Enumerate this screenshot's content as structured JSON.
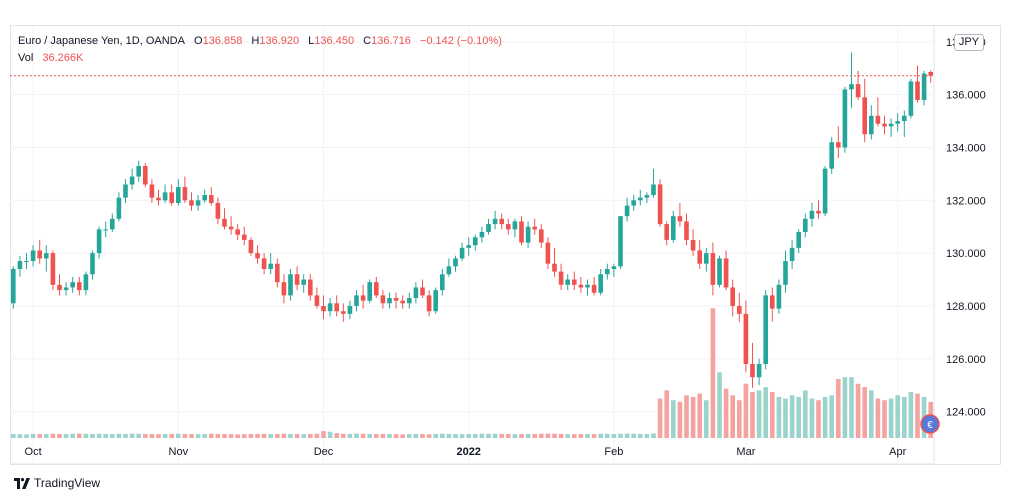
{
  "legend": {
    "symbol": "Euro / Japanese Yen, 1D, OANDA",
    "o_label": "O",
    "o_value": "136.858",
    "h_label": "H",
    "h_value": "136.920",
    "l_label": "L",
    "l_value": "136.450",
    "c_label": "C",
    "c_value": "136.716",
    "change": "−0.142 (−0.10%)",
    "vol_label": "Vol",
    "vol_value": "36.266K"
  },
  "currency_badge": "JPY",
  "footer": {
    "brand": "TradingView"
  },
  "colors": {
    "up": "#26a69a",
    "down": "#ef5350",
    "vol_up": "#9bd3cd",
    "vol_down": "#f4a3a1",
    "grid": "#f0f3fa",
    "axis_text": "#131722"
  },
  "chart_data": {
    "type": "candlestick",
    "ylim": [
      123.0,
      138.6
    ],
    "y_ticks": [
      "124.000",
      "126.000",
      "128.000",
      "130.000",
      "132.000",
      "134.000",
      "136.000",
      "138.000"
    ],
    "x_ticks": [
      {
        "label": "Oct",
        "index": 3,
        "bold": false
      },
      {
        "label": "Nov",
        "index": 25,
        "bold": false
      },
      {
        "label": "Dec",
        "index": 47,
        "bold": false
      },
      {
        "label": "2022",
        "index": 69,
        "bold": true
      },
      {
        "label": "Feb",
        "index": 91,
        "bold": false
      },
      {
        "label": "Mar",
        "index": 111,
        "bold": false
      },
      {
        "label": "Apr",
        "index": 134,
        "bold": false
      }
    ],
    "last_close": 136.716,
    "volume_scale_max": 8400,
    "ohlcv": [
      [
        128.1,
        129.5,
        127.9,
        129.4,
        240
      ],
      [
        129.4,
        129.9,
        129.1,
        129.7,
        230
      ],
      [
        129.7,
        130.0,
        129.4,
        129.7,
        220
      ],
      [
        129.7,
        130.3,
        129.5,
        130.1,
        240
      ],
      [
        130.1,
        130.5,
        129.6,
        129.8,
        250
      ],
      [
        129.8,
        130.3,
        129.3,
        130.0,
        240
      ],
      [
        130.0,
        130.1,
        128.6,
        128.8,
        260
      ],
      [
        128.8,
        129.2,
        128.4,
        128.6,
        250
      ],
      [
        128.6,
        128.9,
        128.4,
        128.7,
        240
      ],
      [
        128.7,
        129.1,
        128.5,
        128.9,
        260
      ],
      [
        128.9,
        129.1,
        128.4,
        128.6,
        270
      ],
      [
        128.6,
        129.3,
        128.4,
        129.2,
        250
      ],
      [
        129.2,
        130.1,
        129.0,
        130.0,
        240
      ],
      [
        130.0,
        131.0,
        129.8,
        130.9,
        260
      ],
      [
        130.9,
        131.2,
        130.6,
        130.9,
        250
      ],
      [
        130.9,
        131.5,
        130.8,
        131.3,
        240
      ],
      [
        131.3,
        132.3,
        131.2,
        132.1,
        260
      ],
      [
        132.1,
        132.8,
        131.9,
        132.6,
        250
      ],
      [
        132.6,
        133.2,
        132.4,
        132.9,
        270
      ],
      [
        132.9,
        133.5,
        132.7,
        133.3,
        260
      ],
      [
        133.3,
        133.4,
        132.5,
        132.6,
        250
      ],
      [
        132.6,
        132.8,
        131.9,
        132.1,
        240
      ],
      [
        132.1,
        132.4,
        131.8,
        132.0,
        230
      ],
      [
        132.0,
        132.6,
        131.9,
        132.3,
        240
      ],
      [
        132.3,
        132.6,
        131.8,
        131.9,
        250
      ],
      [
        131.9,
        132.8,
        131.8,
        132.5,
        260
      ],
      [
        132.5,
        132.9,
        131.9,
        132.0,
        250
      ],
      [
        132.0,
        132.3,
        131.6,
        131.8,
        240
      ],
      [
        131.8,
        132.2,
        131.6,
        132.0,
        230
      ],
      [
        132.0,
        132.4,
        131.9,
        132.2,
        240
      ],
      [
        132.2,
        132.5,
        131.8,
        131.9,
        260
      ],
      [
        131.9,
        132.1,
        131.1,
        131.3,
        250
      ],
      [
        131.3,
        131.7,
        130.9,
        131.0,
        240
      ],
      [
        131.0,
        131.4,
        130.7,
        130.9,
        230
      ],
      [
        130.9,
        131.1,
        130.5,
        130.7,
        220
      ],
      [
        130.7,
        131.0,
        130.3,
        130.5,
        230
      ],
      [
        130.5,
        130.6,
        129.9,
        130.0,
        240
      ],
      [
        130.0,
        130.3,
        129.6,
        129.8,
        250
      ],
      [
        129.8,
        130.0,
        129.2,
        129.4,
        260
      ],
      [
        129.4,
        130.0,
        129.2,
        129.6,
        240
      ],
      [
        129.6,
        129.8,
        128.7,
        128.9,
        250
      ],
      [
        128.9,
        129.2,
        128.1,
        128.4,
        260
      ],
      [
        128.4,
        129.4,
        128.2,
        129.2,
        250
      ],
      [
        129.2,
        129.5,
        128.6,
        128.8,
        240
      ],
      [
        128.8,
        129.2,
        128.5,
        129.0,
        230
      ],
      [
        129.0,
        129.2,
        128.2,
        128.4,
        240
      ],
      [
        128.4,
        128.7,
        127.9,
        128.0,
        260
      ],
      [
        128.0,
        128.4,
        127.5,
        127.8,
        420
      ],
      [
        127.8,
        128.3,
        127.6,
        128.1,
        380
      ],
      [
        128.1,
        128.4,
        127.6,
        127.8,
        300
      ],
      [
        127.8,
        128.1,
        127.4,
        127.7,
        260
      ],
      [
        127.7,
        128.2,
        127.5,
        128.0,
        250
      ],
      [
        128.0,
        128.6,
        127.8,
        128.4,
        270
      ],
      [
        128.4,
        128.8,
        127.9,
        128.2,
        260
      ],
      [
        128.2,
        129.0,
        128.1,
        128.9,
        250
      ],
      [
        128.9,
        129.1,
        128.3,
        128.4,
        240
      ],
      [
        128.4,
        128.6,
        127.9,
        128.1,
        250
      ],
      [
        128.1,
        128.5,
        127.9,
        128.3,
        240
      ],
      [
        128.3,
        128.5,
        127.9,
        128.2,
        230
      ],
      [
        128.2,
        128.4,
        127.9,
        128.1,
        220
      ],
      [
        128.1,
        128.5,
        127.9,
        128.3,
        240
      ],
      [
        128.3,
        128.9,
        128.1,
        128.7,
        250
      ],
      [
        128.7,
        129.0,
        128.3,
        128.4,
        240
      ],
      [
        128.4,
        128.6,
        127.6,
        127.8,
        230
      ],
      [
        127.8,
        128.7,
        127.7,
        128.6,
        250
      ],
      [
        128.6,
        129.4,
        128.4,
        129.2,
        260
      ],
      [
        129.2,
        129.8,
        129.1,
        129.5,
        250
      ],
      [
        129.5,
        129.9,
        129.3,
        129.8,
        240
      ],
      [
        129.8,
        130.4,
        129.7,
        130.2,
        230
      ],
      [
        130.2,
        130.6,
        129.9,
        130.3,
        240
      ],
      [
        130.3,
        130.7,
        130.1,
        130.6,
        250
      ],
      [
        130.6,
        131.0,
        130.4,
        130.8,
        260
      ],
      [
        130.8,
        131.3,
        130.7,
        131.1,
        250
      ],
      [
        131.1,
        131.6,
        130.9,
        131.3,
        260
      ],
      [
        131.3,
        131.5,
        130.9,
        131.1,
        250
      ],
      [
        131.1,
        131.3,
        130.7,
        130.9,
        240
      ],
      [
        130.9,
        131.3,
        130.6,
        131.2,
        230
      ],
      [
        131.2,
        131.4,
        130.3,
        130.4,
        240
      ],
      [
        130.4,
        131.2,
        130.2,
        131.0,
        250
      ],
      [
        131.0,
        131.3,
        130.7,
        130.9,
        240
      ],
      [
        130.9,
        131.1,
        130.2,
        130.4,
        260
      ],
      [
        130.4,
        130.6,
        129.4,
        129.6,
        270
      ],
      [
        129.6,
        130.2,
        129.1,
        129.3,
        260
      ],
      [
        129.3,
        129.6,
        128.6,
        128.8,
        250
      ],
      [
        128.8,
        129.2,
        128.6,
        129.0,
        240
      ],
      [
        129.0,
        129.3,
        128.6,
        128.8,
        230
      ],
      [
        128.8,
        129.1,
        128.5,
        128.7,
        240
      ],
      [
        128.7,
        129.0,
        128.4,
        128.8,
        250
      ],
      [
        128.8,
        129.1,
        128.4,
        128.5,
        240
      ],
      [
        128.5,
        129.4,
        128.4,
        129.2,
        260
      ],
      [
        129.2,
        129.6,
        129.0,
        129.4,
        250
      ],
      [
        129.4,
        129.6,
        129.1,
        129.5,
        240
      ],
      [
        129.5,
        131.4,
        129.4,
        131.4,
        260
      ],
      [
        131.4,
        132.1,
        131.2,
        131.8,
        270
      ],
      [
        131.8,
        132.2,
        131.6,
        132.0,
        260
      ],
      [
        132.0,
        132.4,
        131.8,
        132.1,
        250
      ],
      [
        132.1,
        132.3,
        131.9,
        132.2,
        240
      ],
      [
        132.2,
        133.2,
        132.1,
        132.6,
        280
      ],
      [
        132.6,
        132.8,
        131.0,
        131.1,
        2400
      ],
      [
        131.1,
        131.2,
        130.3,
        130.5,
        2900
      ],
      [
        130.5,
        131.6,
        130.4,
        131.4,
        2300
      ],
      [
        131.4,
        131.9,
        131.0,
        131.2,
        2200
      ],
      [
        131.2,
        131.5,
        130.3,
        130.5,
        2600
      ],
      [
        130.5,
        130.9,
        129.9,
        130.1,
        2500
      ],
      [
        130.1,
        130.5,
        129.4,
        129.6,
        2700
      ],
      [
        129.6,
        130.2,
        129.3,
        130.0,
        2300
      ],
      [
        130.0,
        130.4,
        128.4,
        128.8,
        7900
      ],
      [
        128.8,
        129.9,
        128.7,
        129.8,
        4000
      ],
      [
        129.8,
        130.1,
        128.6,
        128.7,
        3000
      ],
      [
        128.7,
        129.0,
        127.6,
        128.0,
        2600
      ],
      [
        128.0,
        128.5,
        127.4,
        127.7,
        2300
      ],
      [
        127.7,
        128.2,
        125.5,
        125.8,
        3300
      ],
      [
        125.8,
        126.6,
        124.9,
        125.3,
        2800
      ],
      [
        125.3,
        126.0,
        125.0,
        125.8,
        2900
      ],
      [
        125.8,
        128.6,
        125.6,
        128.4,
        3100
      ],
      [
        128.4,
        128.7,
        127.4,
        127.9,
        2800
      ],
      [
        127.9,
        129.0,
        127.7,
        128.8,
        2500
      ],
      [
        128.8,
        130.1,
        128.5,
        129.7,
        2400
      ],
      [
        129.7,
        130.5,
        129.4,
        130.2,
        2600
      ],
      [
        130.2,
        130.9,
        130.0,
        130.8,
        2500
      ],
      [
        130.8,
        131.5,
        130.6,
        131.3,
        2900
      ],
      [
        131.3,
        131.9,
        131.0,
        131.6,
        2400
      ],
      [
        131.6,
        132.0,
        131.3,
        131.5,
        2300
      ],
      [
        131.5,
        133.3,
        131.4,
        133.2,
        2500
      ],
      [
        133.2,
        134.4,
        133.0,
        134.2,
        2600
      ],
      [
        134.2,
        134.8,
        133.6,
        134.0,
        3600
      ],
      [
        134.0,
        136.3,
        133.8,
        136.2,
        3700
      ],
      [
        136.2,
        137.6,
        135.5,
        136.4,
        3700
      ],
      [
        136.4,
        136.9,
        135.8,
        135.9,
        3300
      ],
      [
        135.9,
        136.6,
        134.2,
        134.5,
        3100
      ],
      [
        134.5,
        135.6,
        134.3,
        135.2,
        2900
      ],
      [
        135.2,
        135.9,
        134.8,
        134.9,
        2400
      ],
      [
        134.9,
        135.2,
        134.5,
        134.8,
        2300
      ],
      [
        134.8,
        135.1,
        134.4,
        134.9,
        2400
      ],
      [
        134.9,
        135.3,
        134.6,
        135.0,
        2600
      ],
      [
        135.0,
        135.4,
        134.4,
        135.2,
        2500
      ],
      [
        135.2,
        136.6,
        135.1,
        136.5,
        2800
      ],
      [
        136.5,
        137.1,
        135.7,
        135.8,
        2700
      ],
      [
        135.8,
        136.9,
        135.6,
        136.8,
        2500
      ],
      [
        136.858,
        136.92,
        136.45,
        136.716,
        2200
      ]
    ]
  }
}
